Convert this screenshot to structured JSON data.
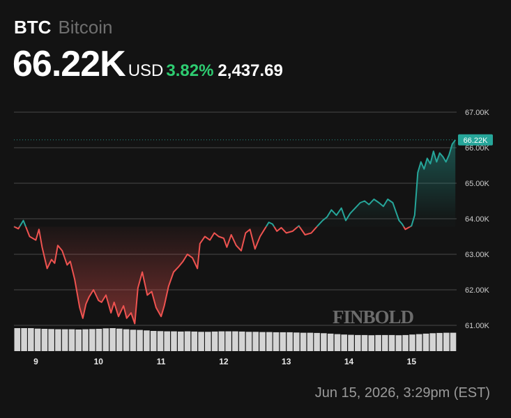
{
  "header": {
    "ticker": "BTC",
    "name": "Bitcoin",
    "price": "66.22K",
    "currency": "USD",
    "change_pct": "3.82%",
    "change_abs": "2,437.69",
    "timestamp": "Jun 15, 2026, 3:29pm (EST)"
  },
  "watermark": "FINBOLD",
  "colors": {
    "up": "#26a69a",
    "down": "#ef5350",
    "change_text": "#2ecc71",
    "background": "#131313",
    "grid": "#4a4a4a",
    "volume": "#d4d4d4"
  },
  "chart_data": {
    "type": "line",
    "x_ticks": [
      9,
      10,
      11,
      12,
      13,
      14,
      15
    ],
    "y_ticks": [
      "67.00K",
      "66.00K",
      "65.00K",
      "64.00K",
      "63.00K",
      "62.00K",
      "61.00K"
    ],
    "ylim": [
      60.0,
      67.8
    ],
    "xlim": [
      8.65,
      15.72
    ],
    "baseline": 63.78,
    "last_price_label": "66.22K",
    "last_value": 66.22,
    "grid": true,
    "series": [
      {
        "x": [
          8.65,
          8.72,
          8.8,
          8.9,
          9.0,
          9.05,
          9.1,
          9.18,
          9.25,
          9.3,
          9.35,
          9.42,
          9.5,
          9.55,
          9.62,
          9.7,
          9.75,
          9.8,
          9.85,
          9.92,
          10.0,
          10.05,
          10.12,
          10.2,
          10.25,
          10.32,
          10.4,
          10.45,
          10.52,
          10.58,
          10.63,
          10.7,
          10.78,
          10.85,
          10.92,
          11.0,
          11.05,
          11.12,
          11.2,
          11.28,
          11.35,
          11.42,
          11.5,
          11.58,
          11.62,
          11.7,
          11.78,
          11.85,
          11.92,
          12.0,
          12.05,
          12.12,
          12.2,
          12.28,
          12.35,
          12.42,
          12.5,
          12.58,
          12.65,
          12.72,
          12.78,
          12.85,
          12.92,
          13.0,
          13.1,
          13.2,
          13.3,
          13.4,
          13.5,
          13.58,
          13.65,
          13.72,
          13.8,
          13.88,
          13.95,
          14.02,
          14.1,
          14.18,
          14.25,
          14.32,
          14.4,
          14.48,
          14.55,
          14.62,
          14.7,
          14.75,
          14.8,
          14.85,
          14.9,
          14.95,
          15.0,
          15.05,
          15.1,
          15.15,
          15.2,
          15.25,
          15.3,
          15.35,
          15.4,
          15.45,
          15.5,
          15.55,
          15.6,
          15.65,
          15.7
        ],
        "y": [
          63.78,
          63.72,
          63.95,
          63.5,
          63.4,
          63.7,
          63.2,
          62.6,
          62.85,
          62.75,
          63.25,
          63.1,
          62.7,
          62.8,
          62.3,
          61.5,
          61.2,
          61.6,
          61.8,
          62.0,
          61.7,
          61.65,
          61.85,
          61.35,
          61.65,
          61.25,
          61.55,
          61.2,
          61.35,
          61.05,
          62.05,
          62.5,
          61.85,
          61.95,
          61.5,
          61.25,
          61.55,
          62.1,
          62.5,
          62.65,
          62.8,
          63.0,
          62.9,
          62.6,
          63.3,
          63.5,
          63.4,
          63.6,
          63.5,
          63.45,
          63.2,
          63.55,
          63.25,
          63.1,
          63.6,
          63.7,
          63.15,
          63.5,
          63.7,
          63.9,
          63.85,
          63.65,
          63.75,
          63.6,
          63.65,
          63.8,
          63.55,
          63.6,
          63.8,
          63.95,
          64.05,
          64.25,
          64.1,
          64.3,
          63.95,
          64.15,
          64.3,
          64.45,
          64.5,
          64.4,
          64.55,
          64.45,
          64.35,
          64.55,
          64.45,
          64.2,
          63.95,
          63.85,
          63.7,
          63.75,
          63.8,
          64.1,
          65.3,
          65.6,
          65.4,
          65.7,
          65.55,
          65.9,
          65.6,
          65.85,
          65.75,
          65.6,
          65.8,
          66.1,
          66.22
        ]
      }
    ],
    "volume": [
      1.0,
      1.0,
      1.0,
      0.98,
      0.97,
      0.96,
      0.95,
      0.95,
      0.95,
      0.94,
      0.95,
      0.96,
      0.97,
      0.99,
      1.0,
      0.98,
      0.95,
      0.93,
      0.92,
      0.9,
      0.88,
      0.87,
      0.86,
      0.86,
      0.85,
      0.86,
      0.85,
      0.84,
      0.84,
      0.85,
      0.86,
      0.86,
      0.86,
      0.85,
      0.84,
      0.84,
      0.83,
      0.83,
      0.82,
      0.82,
      0.82,
      0.81,
      0.8,
      0.8,
      0.79,
      0.78,
      0.76,
      0.74,
      0.72,
      0.71,
      0.7,
      0.7,
      0.69,
      0.7,
      0.7,
      0.7,
      0.69,
      0.7,
      0.72,
      0.74,
      0.76,
      0.78,
      0.79,
      0.8,
      0.8
    ]
  }
}
